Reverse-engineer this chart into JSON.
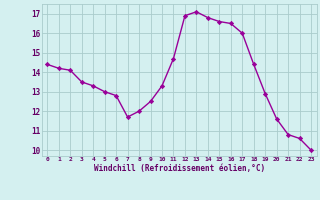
{
  "x": [
    0,
    1,
    2,
    3,
    4,
    5,
    6,
    7,
    8,
    9,
    10,
    11,
    12,
    13,
    14,
    15,
    16,
    17,
    18,
    19,
    20,
    21,
    22,
    23
  ],
  "y": [
    14.4,
    14.2,
    14.1,
    13.5,
    13.3,
    13.0,
    12.8,
    11.7,
    12.0,
    12.5,
    13.3,
    14.7,
    16.9,
    17.1,
    16.8,
    16.6,
    16.5,
    16.0,
    14.4,
    12.9,
    11.6,
    10.8,
    10.6,
    10.0
  ],
  "line_color": "#990099",
  "marker": "D",
  "markersize": 2.2,
  "linewidth": 1.0,
  "bg_color": "#d4f0f0",
  "grid_color": "#aacccc",
  "xlabel": "Windchill (Refroidissement éolien,°C)",
  "xlabel_color": "#660066",
  "tick_color": "#660066",
  "ylim": [
    9.7,
    17.5
  ],
  "xlim": [
    -0.5,
    23.5
  ],
  "yticks": [
    10,
    11,
    12,
    13,
    14,
    15,
    16,
    17
  ],
  "xtick_labels": [
    "0",
    "1",
    "2",
    "3",
    "4",
    "5",
    "6",
    "7",
    "8",
    "9",
    "10",
    "11",
    "12",
    "13",
    "14",
    "15",
    "16",
    "17",
    "18",
    "19",
    "20",
    "21",
    "22",
    "23"
  ]
}
